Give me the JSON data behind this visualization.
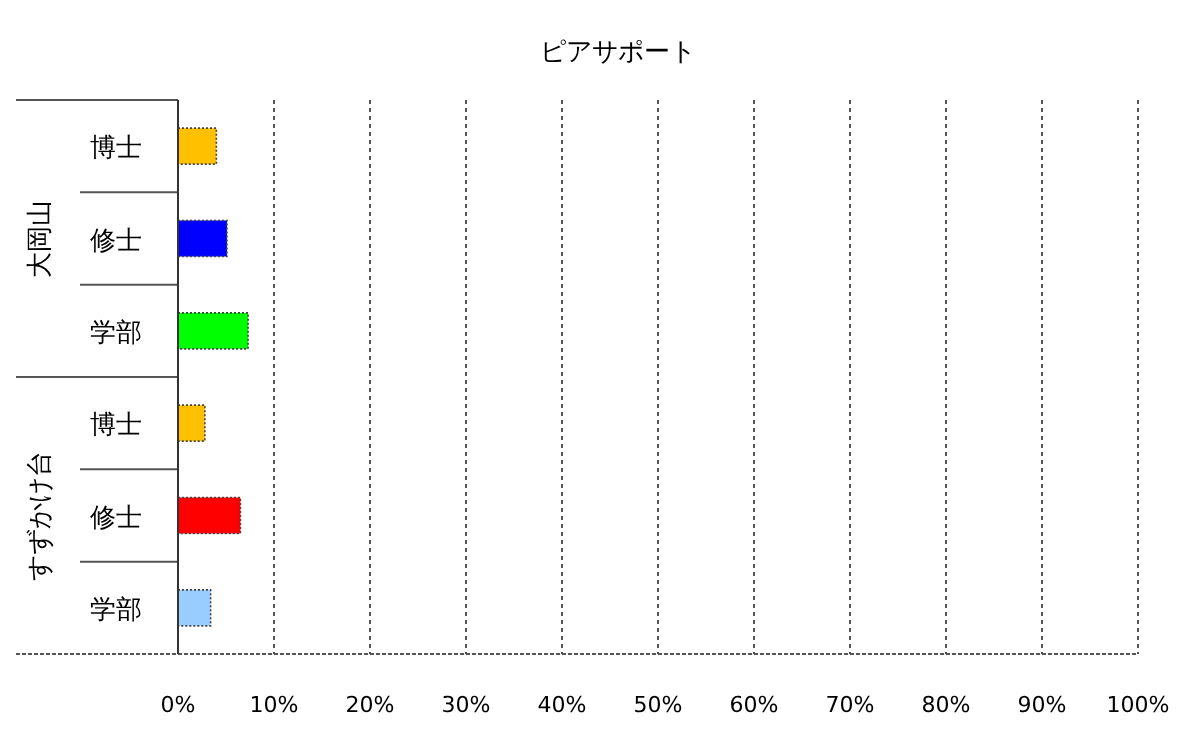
{
  "chart_data": {
    "type": "bar",
    "orientation": "horizontal",
    "title": "ピアサポート",
    "categories": [
      "博士",
      "修士",
      "学部",
      "博士",
      "修士",
      "学部"
    ],
    "values": [
      4.0,
      5.1,
      7.3,
      2.8,
      6.5,
      3.4
    ],
    "colors": [
      "#ffc000",
      "#0000ff",
      "#00ff00",
      "#ffc000",
      "#ff0000",
      "#99ccff"
    ],
    "annotations": [
      "大岡山",
      "すずかけ台"
    ],
    "xlim": [
      0,
      100
    ],
    "xticks": [
      {
        "value": 0,
        "label": "0%"
      },
      {
        "value": 10,
        "label": "10%"
      },
      {
        "value": 20,
        "label": "20%"
      },
      {
        "value": 30,
        "label": "30%"
      },
      {
        "value": 40,
        "label": "40%"
      },
      {
        "value": 50,
        "label": "50%"
      },
      {
        "value": 60,
        "label": "60%"
      },
      {
        "value": 70,
        "label": "70%"
      },
      {
        "value": 80,
        "label": "80%"
      },
      {
        "value": 90,
        "label": "90%"
      },
      {
        "value": 100,
        "label": "100%"
      }
    ],
    "grid": "x"
  }
}
